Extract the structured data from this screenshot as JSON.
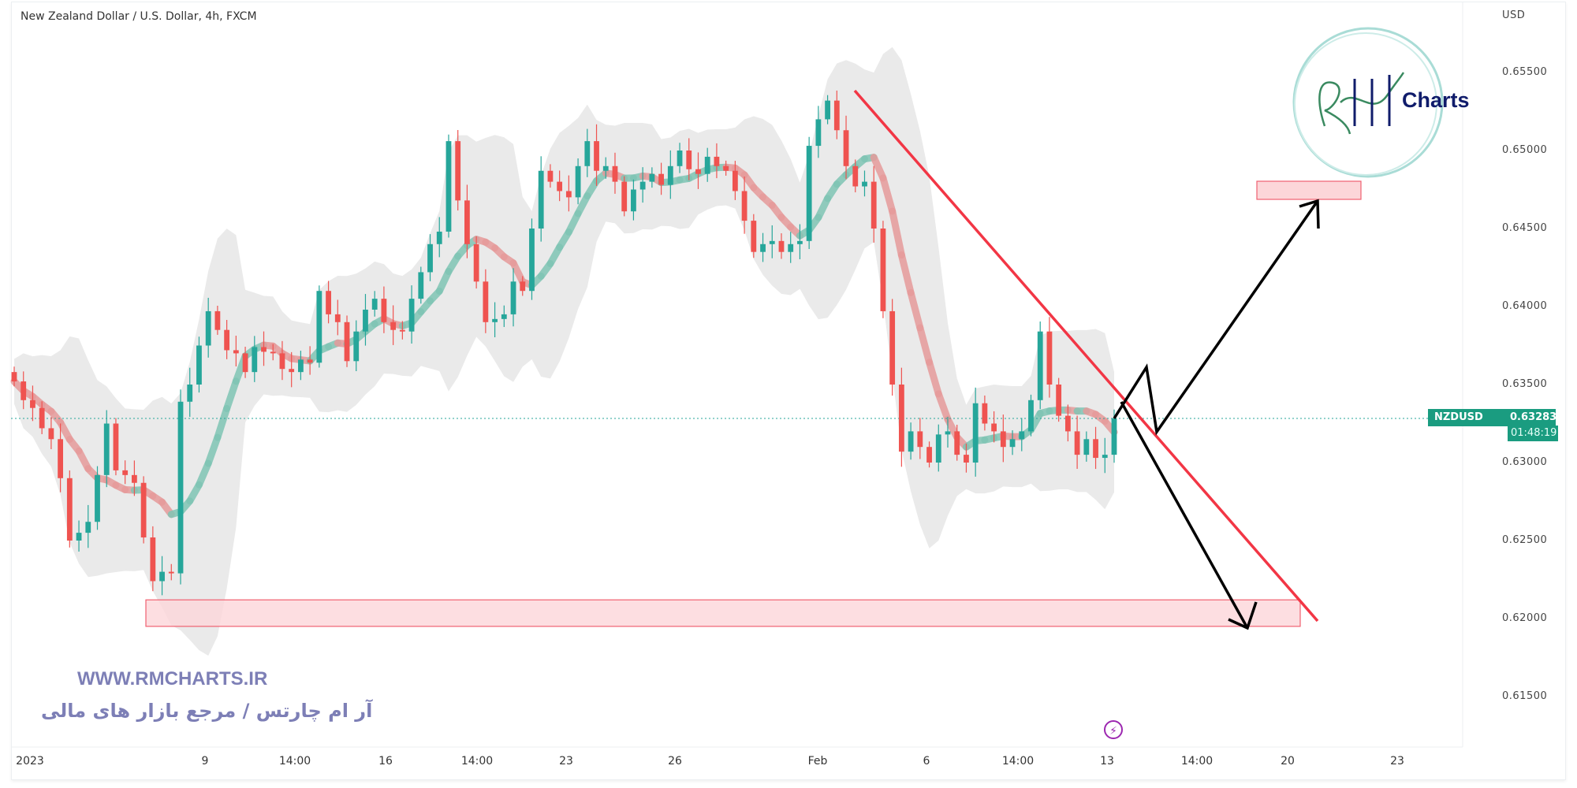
{
  "header": {
    "title": "New Zealand Dollar / U.S. Dollar, 4h, FXCM"
  },
  "price_axis": {
    "currency": "USD"
  },
  "current_price": {
    "symbol": "NZDUSD",
    "price": "0.63283",
    "countdown": "01:48:19",
    "color": "#1a9c80"
  },
  "watermark": {
    "url": "WWW.RMCHARTS.IR",
    "tagline": "آر ام چارتس / مرجع بازار های مالی",
    "logo_text": "Charts",
    "logo_initials": "RM"
  },
  "icons": {
    "lightning": "lightning-icon"
  },
  "colors": {
    "up": "#26a69a",
    "down": "#ef5350",
    "trendline": "#f23645",
    "zone_fill": "#fcd6d9",
    "zone_border": "#f06070",
    "arrows": "#000000"
  },
  "chart_data": {
    "type": "candlestick",
    "title": "New Zealand Dollar / U.S. Dollar, 4h, FXCM",
    "ylabel": "USD",
    "ylim": [
      0.6125,
      0.6565
    ],
    "yticks": [
      "0.65500",
      "0.65000",
      "0.64500",
      "0.64000",
      "0.63500",
      "0.63000",
      "0.62500",
      "0.62000",
      "0.61500"
    ],
    "xticks": [
      "2023",
      "9",
      "14:00",
      "16",
      "14:00",
      "23",
      "26",
      "Feb",
      "6",
      "14:00",
      "13",
      "14:00",
      "20",
      "23"
    ],
    "closes": [
      0.6352,
      0.634,
      0.6335,
      0.6322,
      0.6315,
      0.629,
      0.625,
      0.6255,
      0.6262,
      0.6292,
      0.6325,
      0.6295,
      0.6292,
      0.6287,
      0.6252,
      0.6224,
      0.623,
      0.6229,
      0.6339,
      0.635,
      0.6375,
      0.6397,
      0.6385,
      0.6372,
      0.637,
      0.6358,
      0.6374,
      0.6371,
      0.637,
      0.636,
      0.6358,
      0.6366,
      0.6364,
      0.641,
      0.6395,
      0.639,
      0.6365,
      0.6384,
      0.6398,
      0.6405,
      0.639,
      0.6385,
      0.6384,
      0.6405,
      0.6422,
      0.644,
      0.6448,
      0.6506,
      0.6468,
      0.644,
      0.6416,
      0.639,
      0.6392,
      0.6395,
      0.6416,
      0.641,
      0.645,
      0.6487,
      0.648,
      0.6474,
      0.647,
      0.649,
      0.6506,
      0.6487,
      0.649,
      0.648,
      0.6461,
      0.6475,
      0.648,
      0.6485,
      0.6478,
      0.649,
      0.65,
      0.6488,
      0.6485,
      0.6496,
      0.649,
      0.6487,
      0.6474,
      0.6455,
      0.6435,
      0.644,
      0.6442,
      0.6435,
      0.644,
      0.6442,
      0.6503,
      0.652,
      0.6532,
      0.6513,
      0.649,
      0.6477,
      0.648,
      0.645,
      0.6397,
      0.635,
      0.6307,
      0.632,
      0.631,
      0.63,
      0.6318,
      0.632,
      0.6305,
      0.63,
      0.6338,
      0.6325,
      0.632,
      0.631,
      0.6315,
      0.632,
      0.634,
      0.6384,
      0.635,
      0.633,
      0.632,
      0.6305,
      0.6315,
      0.6303,
      0.6305,
      0.63283
    ],
    "annotations": {
      "support_zone": [
        0.6195,
        0.6212
      ],
      "target_zone": [
        0.6472,
        0.648
      ],
      "descending_trendline": "from Feb high 0.6537 downward",
      "scenarios": [
        "breakout up to 0.6470",
        "drop to 0.6195"
      ]
    }
  }
}
